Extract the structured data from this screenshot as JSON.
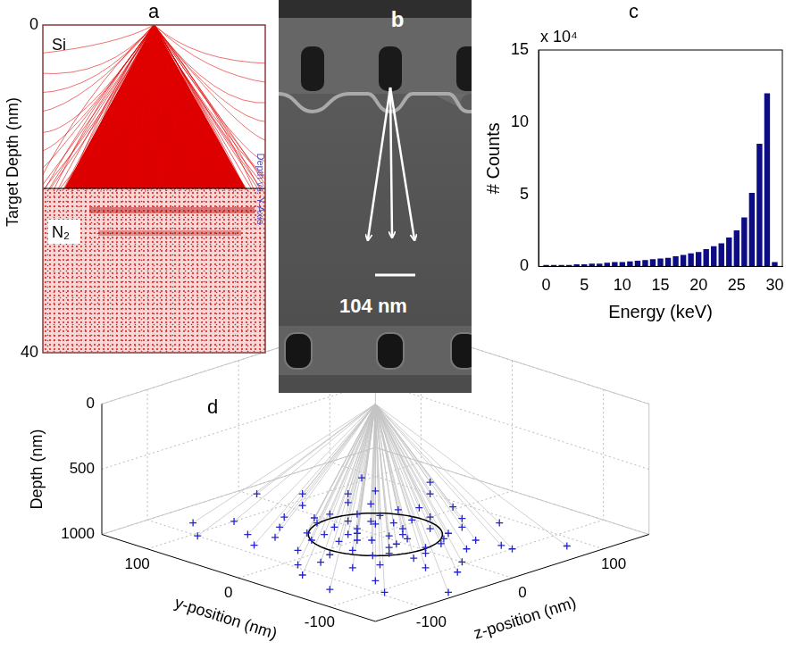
{
  "panel_a": {
    "label": "a",
    "y_label": "Target Depth (nm)",
    "ylim": [
      0,
      40
    ],
    "yticks": [
      0,
      40
    ],
    "layers": [
      "Si",
      "N₂"
    ],
    "annotation": "Depth vs. Y-Axis"
  },
  "panel_b": {
    "label": "b",
    "scale_bar": "104 nm"
  },
  "chart_data": [
    {
      "label": "c",
      "type": "bar",
      "x": [
        0,
        1,
        2,
        3,
        4,
        5,
        6,
        7,
        8,
        9,
        10,
        11,
        12,
        13,
        14,
        15,
        16,
        17,
        18,
        19,
        20,
        21,
        22,
        23,
        24,
        25,
        26,
        27,
        28,
        29,
        30
      ],
      "values": [
        0.1,
        0.1,
        0.1,
        0.1,
        0.15,
        0.15,
        0.2,
        0.2,
        0.25,
        0.3,
        0.3,
        0.35,
        0.4,
        0.45,
        0.5,
        0.55,
        0.6,
        0.7,
        0.8,
        0.9,
        1.0,
        1.2,
        1.4,
        1.6,
        2.0,
        2.5,
        3.4,
        5.1,
        8.5,
        12.0,
        0.3
      ],
      "color": "#0c0c84",
      "x_label": "Energy (keV)",
      "y_label": "# Counts",
      "y_multiplier": "x 10⁴",
      "xlim": [
        -1,
        31
      ],
      "ylim": [
        0,
        15
      ],
      "xticks": [
        0,
        5,
        10,
        15,
        20,
        25,
        30
      ],
      "yticks": [
        0,
        5,
        10,
        15
      ],
      "grid": false
    },
    {
      "label": "d",
      "type": "scatter3d",
      "marker": "plus",
      "color": "#2323d0",
      "grid": true,
      "source": [
        0,
        0,
        0
      ],
      "circle_diameter": 104,
      "y_label": "y-position (nm)",
      "z_label": "z-position (nm)",
      "depth_label": "Depth (nm)",
      "ylim": [
        -150,
        150
      ],
      "zlim": [
        -150,
        150
      ],
      "depthlim": [
        0,
        1000
      ],
      "yticks": [
        -100,
        0,
        100
      ],
      "zticks": [
        -100,
        0,
        100
      ],
      "depthticks": [
        0,
        500,
        1000
      ],
      "points": [
        [
          -10,
          5,
          1000
        ],
        [
          12,
          -8,
          1000
        ],
        [
          25,
          20,
          1000
        ],
        [
          -30,
          -15,
          1000
        ],
        [
          40,
          -35,
          1000
        ],
        [
          -45,
          30,
          1000
        ],
        [
          5,
          45,
          1000
        ],
        [
          -15,
          -40,
          1000
        ],
        [
          60,
          10,
          1000
        ],
        [
          -60,
          -5,
          1000
        ],
        [
          30,
          55,
          1000
        ],
        [
          -35,
          60,
          1000
        ],
        [
          50,
          -60,
          1000
        ],
        [
          -55,
          -50,
          1000
        ],
        [
          70,
          40,
          1000
        ],
        [
          -75,
          25,
          1000
        ],
        [
          15,
          -70,
          1000
        ],
        [
          -20,
          75,
          1000
        ],
        [
          80,
          -20,
          1000
        ],
        [
          -85,
          -30,
          1000
        ],
        [
          0,
          -20,
          1000
        ],
        [
          20,
          0,
          1000
        ],
        [
          -5,
          25,
          1000
        ],
        [
          35,
          -10,
          1000
        ],
        [
          -25,
          10,
          1000
        ],
        [
          10,
          30,
          1000
        ],
        [
          -40,
          -25,
          1000
        ],
        [
          45,
          25,
          1000
        ],
        [
          -50,
          5,
          1000
        ],
        [
          25,
          -45,
          1000
        ],
        [
          -10,
          -60,
          1000
        ],
        [
          65,
          -40,
          1000
        ],
        [
          -65,
          45,
          1000
        ],
        [
          55,
          50,
          1000
        ],
        [
          -45,
          -70,
          1000
        ],
        [
          90,
          10,
          1000
        ],
        [
          -95,
          0,
          1000
        ],
        [
          5,
          90,
          1000
        ],
        [
          -10,
          -95,
          1000
        ],
        [
          100,
          -55,
          1000
        ],
        [
          -100,
          50,
          1000
        ],
        [
          75,
          75,
          1000
        ],
        [
          -80,
          -80,
          1000
        ],
        [
          110,
          30,
          1000
        ],
        [
          -110,
          -20,
          1000
        ],
        [
          40,
          100,
          1000
        ],
        [
          -30,
          -110,
          1000
        ],
        [
          120,
          -80,
          1000
        ],
        [
          -125,
          85,
          1000
        ],
        [
          95,
          -100,
          1000
        ],
        [
          -20,
          40,
          1000
        ],
        [
          18,
          18,
          1000
        ],
        [
          -8,
          -12,
          1000
        ],
        [
          28,
          -28,
          1000
        ],
        [
          -38,
          42,
          1000
        ],
        [
          52,
          -12,
          1000
        ],
        [
          -52,
          20,
          1000
        ],
        [
          8,
          -32,
          1000
        ],
        [
          -28,
          -5,
          1000
        ],
        [
          38,
          8,
          1000
        ],
        [
          0,
          60,
          1000
        ],
        [
          -62,
          -20,
          1000
        ],
        [
          62,
          -5,
          1000
        ],
        [
          22,
          70,
          1000
        ],
        [
          -18,
          -78,
          1000
        ],
        [
          85,
          55,
          1000
        ],
        [
          -88,
          50,
          1000
        ],
        [
          48,
          -85,
          1000
        ],
        [
          -48,
          88,
          1000
        ],
        [
          135,
          5,
          1000
        ],
        [
          -140,
          -60,
          1000
        ],
        [
          60,
          120,
          1000
        ],
        [
          -70,
          -120,
          1000
        ],
        [
          105,
          90,
          1000
        ],
        [
          -105,
          -95,
          1000
        ],
        [
          15,
          -15,
          1000
        ],
        [
          -15,
          15,
          1000
        ],
        [
          30,
          35,
          1000
        ],
        [
          -35,
          -38,
          1000
        ],
        [
          70,
          -70,
          1000
        ]
      ]
    }
  ]
}
